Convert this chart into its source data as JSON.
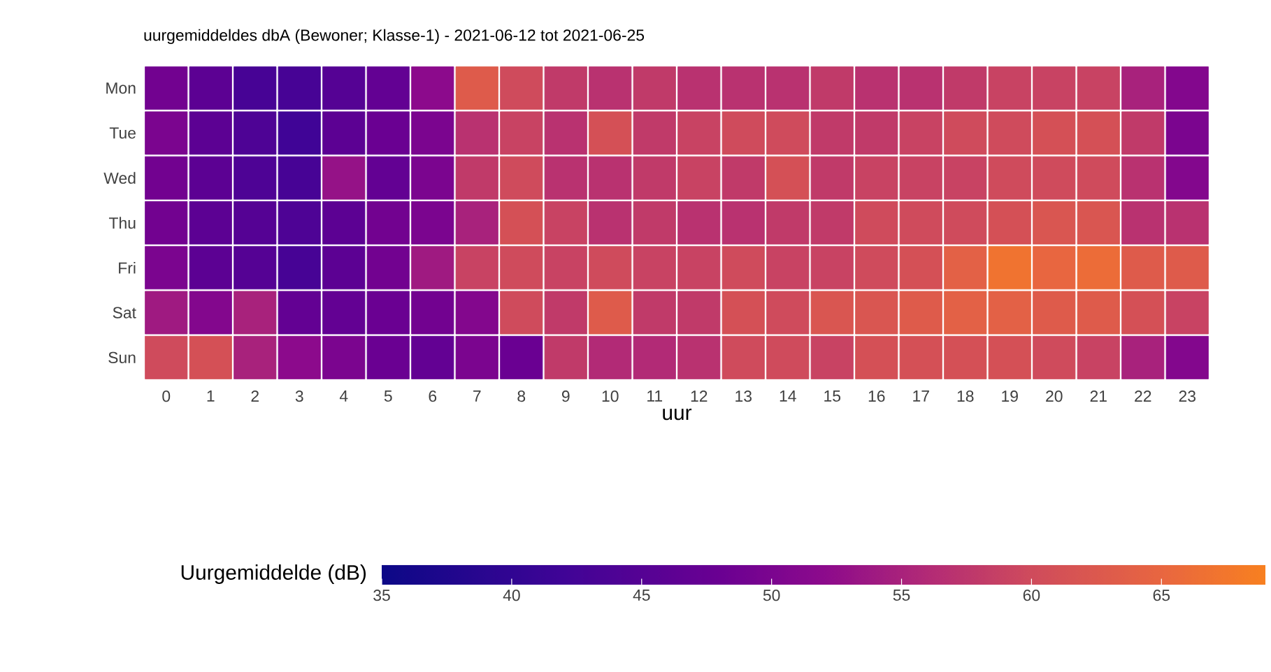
{
  "chart_data": {
    "type": "heatmap",
    "title": "uurgemiddeldes dbA (Bewoner; Klasse-1) - 2021-06-12 tot 2021-06-25",
    "xlabel": "uur",
    "clabel": "Uurgemiddelde (dB)",
    "categories": [
      "0",
      "1",
      "2",
      "3",
      "4",
      "5",
      "6",
      "7",
      "8",
      "9",
      "10",
      "11",
      "12",
      "13",
      "14",
      "15",
      "16",
      "17",
      "18",
      "19",
      "20",
      "21",
      "22",
      "23"
    ],
    "y_categories": [
      "Mon",
      "Tue",
      "Wed",
      "Thu",
      "Fri",
      "Sat",
      "Sun"
    ],
    "cells": [
      [
        49,
        46,
        43,
        43,
        45,
        47,
        52,
        63,
        60,
        58,
        57,
        58,
        57,
        57,
        57,
        58,
        57,
        57,
        58,
        59,
        59,
        59,
        55,
        51
      ],
      [
        50,
        46,
        44,
        42,
        46,
        48,
        50,
        57,
        59,
        57,
        61,
        58,
        59,
        60,
        60,
        58,
        58,
        59,
        60,
        60,
        61,
        61,
        58,
        50
      ],
      [
        49,
        46,
        44,
        43,
        53,
        47,
        50,
        58,
        60,
        57,
        57,
        58,
        59,
        58,
        61,
        58,
        59,
        59,
        59,
        60,
        60,
        60,
        57,
        51
      ],
      [
        49,
        46,
        45,
        44,
        46,
        49,
        50,
        55,
        61,
        59,
        57,
        58,
        57,
        57,
        58,
        58,
        60,
        60,
        60,
        61,
        62,
        62,
        57,
        57
      ],
      [
        50,
        46,
        45,
        43,
        46,
        49,
        54,
        59,
        60,
        59,
        60,
        59,
        59,
        60,
        59,
        59,
        60,
        61,
        64,
        67,
        65,
        66,
        63,
        63
      ],
      [
        54,
        51,
        55,
        47,
        47,
        48,
        49,
        51,
        60,
        58,
        63,
        58,
        58,
        61,
        60,
        62,
        62,
        63,
        64,
        64,
        63,
        63,
        61,
        59
      ],
      [
        60,
        61,
        55,
        52,
        50,
        48,
        47,
        50,
        48,
        58,
        56,
        56,
        57,
        60,
        60,
        59,
        61,
        61,
        61,
        61,
        60,
        59,
        55,
        51
      ]
    ],
    "clim": [
      35,
      69
    ],
    "cticks": [
      35,
      40,
      45,
      50,
      55,
      60,
      65
    ]
  }
}
